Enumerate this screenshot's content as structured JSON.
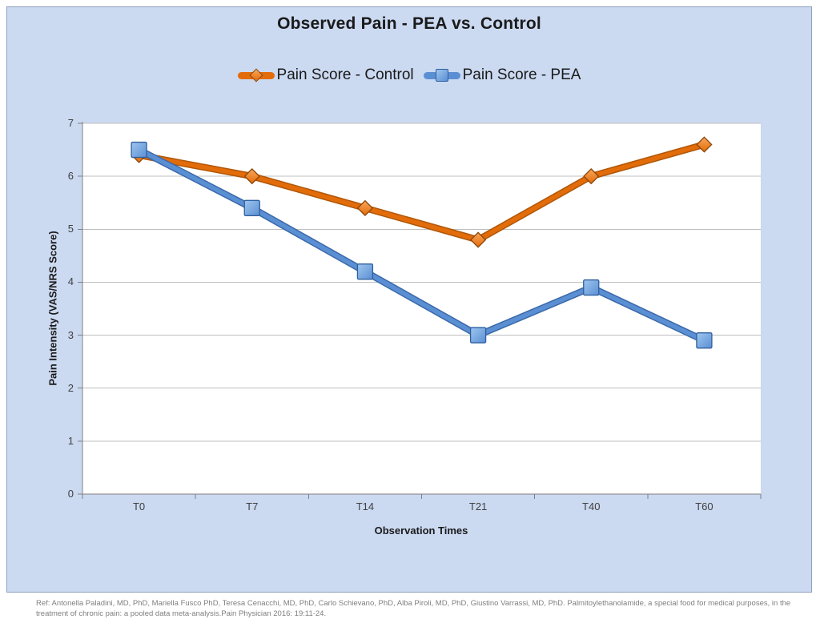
{
  "title": "Observed Pain - PEA vs. Control",
  "chart_data": {
    "type": "line",
    "categories": [
      "T0",
      "T7",
      "T14",
      "T21",
      "T40",
      "T60"
    ],
    "series": [
      {
        "name": "Pain Score - Control",
        "marker": "diamond",
        "values": [
          6.4,
          6.0,
          5.4,
          4.8,
          6.0,
          6.6
        ],
        "color": "#E36C0A",
        "color_dark": "#B05707",
        "color_light": "#F9A65A",
        "marker_border": "#8C4507"
      },
      {
        "name": "Pain Score - PEA",
        "marker": "square",
        "values": [
          6.5,
          5.4,
          4.2,
          3.0,
          3.9,
          2.9
        ],
        "color": "#5B8FD4",
        "color_dark": "#3A69A8",
        "color_light": "#9EC6EE",
        "marker_border": "#2F5E9E"
      }
    ],
    "xlabel": "Observation Times",
    "ylabel": "Pain Intensity (VAS/NRS Score)",
    "ylim": [
      0,
      7
    ],
    "yticks": [
      0,
      1,
      2,
      3,
      4,
      5,
      6,
      7
    ],
    "grid": true,
    "legend_position": "top"
  },
  "footnote": "Ref: Antonella Paladini, MD, PhD, Mariella Fusco PhD, Teresa Cenacchi, MD, PhD, Carlo Schievano, PhD, Alba Piroli, MD, PhD, Giustino Varrassi, MD, PhD. Palmitoylethanolamide, a special food for medical purposes, in the treatment of chronic pain: a pooled data meta-analysis.Pain Physician 2016: 19:11-24.",
  "colors": {
    "panel_bg": "#CBD9F1",
    "panel_border": "#8EA0BE",
    "plot_bg": "#FFFFFF",
    "gridline": "#BFBFBF",
    "axis": "#808080",
    "title_text": "#1A1A1A",
    "tick_text": "#404040",
    "footnote_text": "#7F7F7F"
  }
}
